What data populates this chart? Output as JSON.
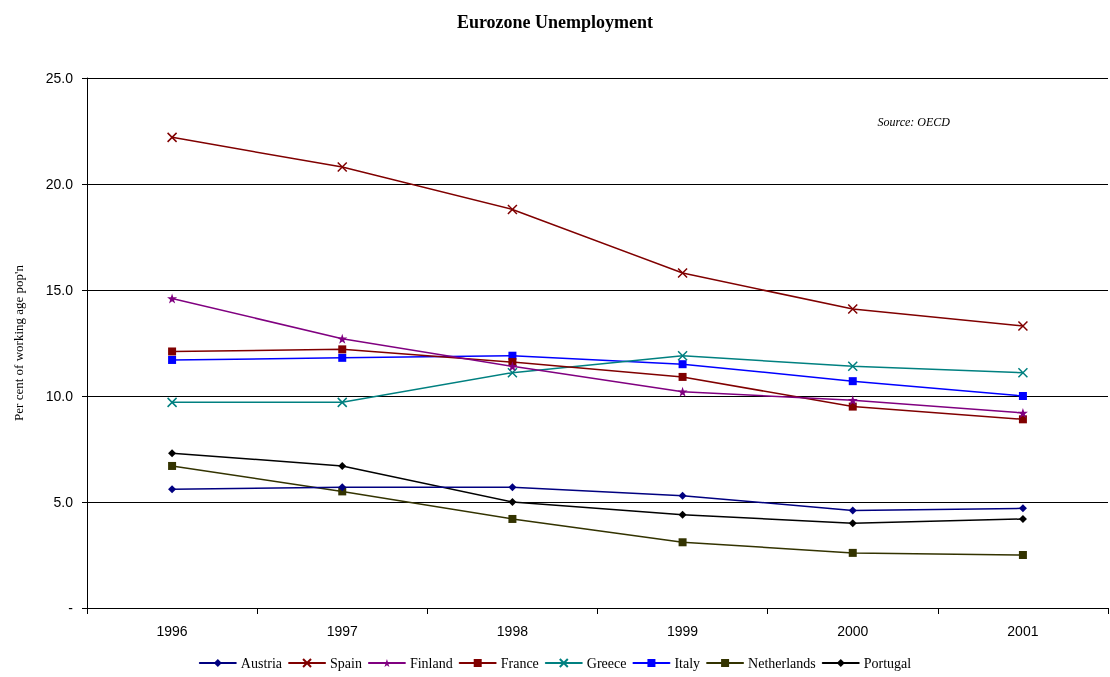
{
  "chart_data": {
    "type": "line",
    "title": "Eurozone Unemployment",
    "ylabel": "Per cent of working age pop'n",
    "annotations": [
      "Source: OECD"
    ],
    "categories": [
      "1996",
      "1997",
      "1998",
      "1999",
      "2000",
      "2001"
    ],
    "series": [
      {
        "name": "Austria",
        "color": "#000080",
        "marker": "diamond",
        "values": [
          5.6,
          5.7,
          5.7,
          5.3,
          4.6,
          4.7
        ]
      },
      {
        "name": "Spain",
        "color": "#800000",
        "marker": "cross",
        "values": [
          22.2,
          20.8,
          18.8,
          15.8,
          14.1,
          13.3
        ]
      },
      {
        "name": "Finland",
        "color": "#800080",
        "marker": "star",
        "values": [
          14.6,
          12.7,
          11.4,
          10.2,
          9.8,
          9.2
        ]
      },
      {
        "name": "France",
        "color": "#800000",
        "marker": "square",
        "values": [
          12.1,
          12.2,
          11.6,
          10.9,
          9.5,
          8.9
        ]
      },
      {
        "name": "Greece",
        "color": "#008080",
        "marker": "cross",
        "values": [
          9.7,
          9.7,
          11.1,
          11.9,
          11.4,
          11.1
        ]
      },
      {
        "name": "Italy",
        "color": "#0000ff",
        "marker": "square",
        "values": [
          11.7,
          11.8,
          11.9,
          11.5,
          10.7,
          10.0
        ]
      },
      {
        "name": "Netherlands",
        "color": "#333300",
        "marker": "square",
        "values": [
          6.7,
          5.5,
          4.2,
          3.1,
          2.6,
          2.5
        ]
      },
      {
        "name": "Portugal",
        "color": "#000000",
        "marker": "diamond",
        "values": [
          7.3,
          6.7,
          5.0,
          4.4,
          4.0,
          4.2
        ]
      }
    ],
    "ylim": [
      0,
      25
    ],
    "yticks": [
      {
        "value": 0,
        "label": "-"
      },
      {
        "value": 5,
        "label": "5.0"
      },
      {
        "value": 10,
        "label": "10.0"
      },
      {
        "value": 15,
        "label": "15.0"
      },
      {
        "value": 20,
        "label": "20.0"
      },
      {
        "value": 25,
        "label": "25.0"
      }
    ],
    "grid": "y",
    "legend": "bottom",
    "line_style": "solid"
  }
}
